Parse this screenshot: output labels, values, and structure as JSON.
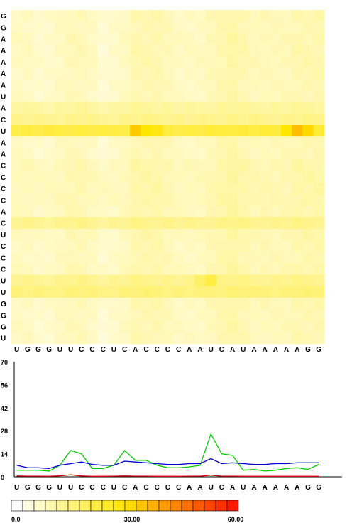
{
  "chart_data": [
    {
      "type": "heatmap",
      "title": "",
      "x_sequence": [
        "U",
        "G",
        "G",
        "G",
        "U",
        "U",
        "C",
        "C",
        "C",
        "U",
        "C",
        "A",
        "C",
        "C",
        "C",
        "C",
        "A",
        "A",
        "U",
        "C",
        "A",
        "U",
        "A",
        "A",
        "A",
        "A",
        "A",
        "G",
        "G"
      ],
      "y_sequence": [
        "G",
        "G",
        "A",
        "A",
        "A",
        "A",
        "A",
        "U",
        "A",
        "C",
        "U",
        "A",
        "A",
        "C",
        "C",
        "C",
        "C",
        "A",
        "C",
        "U",
        "C",
        "C",
        "C",
        "U",
        "U",
        "G",
        "G",
        "G",
        "U"
      ],
      "color_scale": {
        "min": 0.0,
        "max": 60.0,
        "low_color": "#ffffff",
        "mid_color": "#ffe600",
        "high_color": "#ff1a00"
      },
      "row_profiles": [
        4,
        3,
        4,
        4,
        4,
        3,
        3,
        3,
        9,
        11,
        20,
        3,
        3,
        6,
        6,
        6,
        6,
        5,
        11,
        5,
        4,
        4,
        5,
        11,
        13,
        4,
        3,
        3,
        3
      ],
      "col_profiles": [
        6,
        6,
        5,
        5,
        6,
        7,
        7,
        6,
        4,
        5,
        6,
        8,
        8,
        8,
        7,
        6,
        6,
        6,
        7,
        8,
        9,
        8,
        7,
        7,
        7,
        7,
        8,
        8,
        8
      ],
      "special": [
        [
          10,
          11,
          34
        ],
        [
          10,
          12,
          30
        ],
        [
          10,
          13,
          28
        ],
        [
          10,
          25,
          30
        ],
        [
          10,
          26,
          36
        ],
        [
          10,
          27,
          32
        ],
        [
          23,
          18,
          22
        ],
        [
          23,
          17,
          18
        ],
        [
          18,
          14,
          14
        ]
      ]
    },
    {
      "type": "line",
      "title": "",
      "xlabel": "",
      "ylabel": "",
      "categories": [
        "U",
        "G",
        "G",
        "G",
        "U",
        "U",
        "C",
        "C",
        "C",
        "U",
        "C",
        "A",
        "C",
        "C",
        "C",
        "C",
        "A",
        "A",
        "U",
        "C",
        "A",
        "U",
        "A",
        "A",
        "A",
        "A",
        "A",
        "G",
        "G"
      ],
      "ylim": [
        0,
        70
      ],
      "yticks": [
        "70",
        "56",
        "42",
        "28",
        "14",
        "0"
      ],
      "series": [
        {
          "color": "#00cc00",
          "values": [
            4,
            4,
            4,
            3.5,
            7,
            16,
            14,
            5,
            5,
            7,
            16,
            10,
            10,
            7,
            5.5,
            5.5,
            6,
            7,
            26,
            14,
            13,
            4,
            4.5,
            3.5,
            4,
            5,
            5.5,
            4.5,
            7.5
          ]
        },
        {
          "color": "#0000cc",
          "values": [
            7,
            5.5,
            5.5,
            5,
            7,
            8,
            9,
            7.5,
            7,
            7,
            9.5,
            9,
            8.5,
            8,
            7.5,
            7.5,
            8,
            8,
            11,
            8,
            8.5,
            8,
            7.5,
            7.5,
            8,
            8,
            8.5,
            8.5,
            8.5
          ]
        },
        {
          "color": "#cc0000",
          "values": [
            0.5,
            0.4,
            0.4,
            0.3,
            0.6,
            1.2,
            0.5,
            0.3,
            0.3,
            0.4,
            0.5,
            0.4,
            0.4,
            0.3,
            0.3,
            0.3,
            0.4,
            0.4,
            1.0,
            0.4,
            0.4,
            0.3,
            0.3,
            0.3,
            0.3,
            0.3,
            0.3,
            0.3,
            0.3
          ]
        }
      ]
    }
  ],
  "legend": {
    "labels": [
      "0.0",
      "30.00",
      "60.00"
    ],
    "swatch_count": 20
  }
}
